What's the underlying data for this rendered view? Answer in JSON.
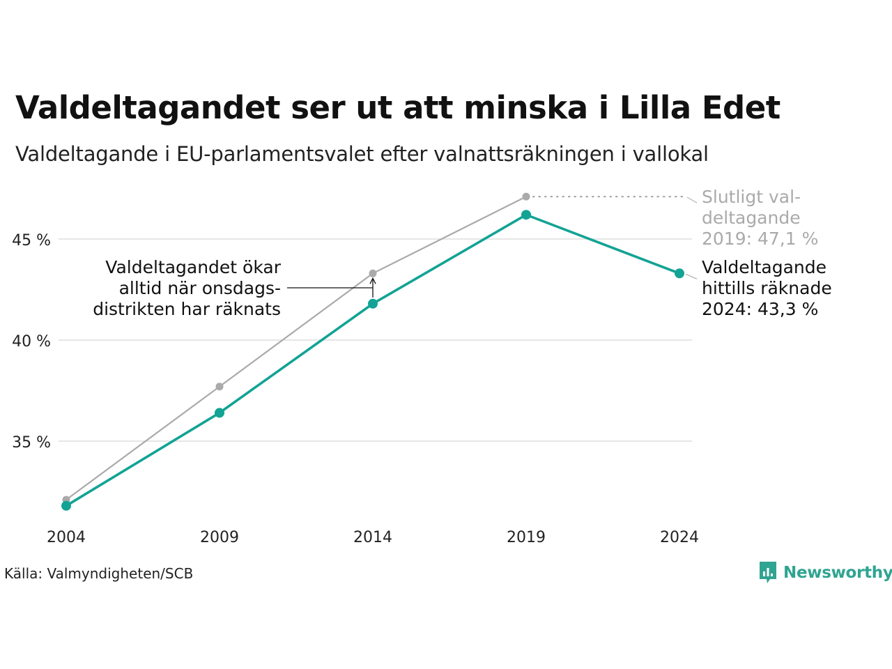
{
  "title": "Valdeltagandet ser ut att minska i Lilla Edet",
  "subtitle": "Valdeltagande i EU-parlamentsvalet efter valnattsräkningen i vallokal",
  "source": "Källa: Valmyndigheten/SCB",
  "brand": "Newsworthy",
  "colors": {
    "current": "#12a394",
    "final": "#aaaaaa",
    "grid": "#e6e6e6",
    "brand": "#2fa491"
  },
  "annotations": {
    "final_label": [
      "Slutligt val-",
      "deltagande",
      "2019: 47,1 %"
    ],
    "current_label": [
      "Valdeltagande",
      "hittills räknade",
      "2024: 43,3 %"
    ],
    "note": [
      "Valdeltagandet ökar",
      "alltid när onsdags-",
      "distrikten har räknats"
    ]
  },
  "chart_data": {
    "type": "line",
    "title": "Valdeltagandet ser ut att minska i Lilla Edet",
    "subtitle": "Valdeltagande i EU-parlamentsvalet efter valnattsräkningen i vallokal",
    "xlabel": "",
    "ylabel": "",
    "x": [
      "2004",
      "2009",
      "2014",
      "2019",
      "2024"
    ],
    "y_ticks": [
      35,
      40,
      45
    ],
    "y_tick_labels": [
      "35 %",
      "40 %",
      "45 %"
    ],
    "ylim": [
      30,
      48
    ],
    "grid": true,
    "series": [
      {
        "key": "final",
        "values": [
          32.1,
          37.7,
          43.3,
          47.1,
          null
        ]
      },
      {
        "key": "current",
        "values": [
          31.8,
          36.4,
          41.8,
          46.2,
          43.3
        ]
      }
    ]
  }
}
